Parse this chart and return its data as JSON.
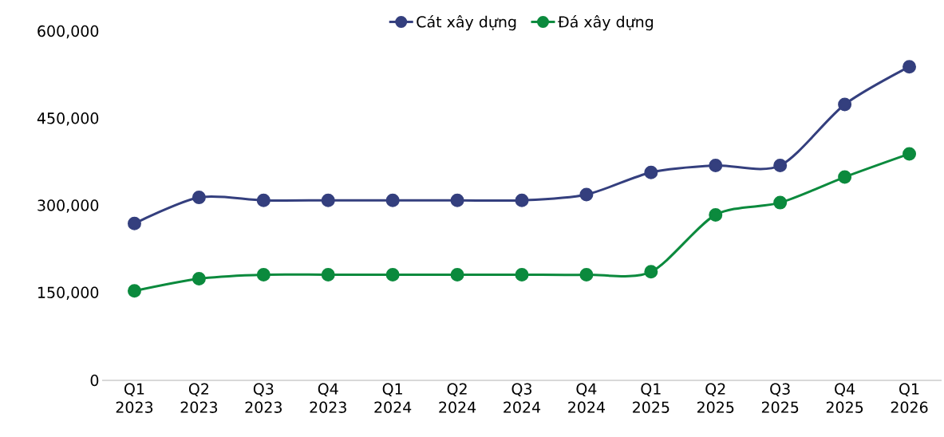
{
  "chart_data": {
    "type": "line",
    "categories": [
      "Q1 2023",
      "Q2 2023",
      "Q3 2023",
      "Q4 2023",
      "Q1 2024",
      "Q2 2024",
      "Q3 2024",
      "Q4 2024",
      "Q1 2025",
      "Q2 2025",
      "Q3 2025",
      "Q4 2025",
      "Q1 2026"
    ],
    "series": [
      {
        "name": "Cát xây dựng",
        "color": "#343f7e",
        "values": [
          270000,
          315000,
          310000,
          310000,
          310000,
          310000,
          310000,
          320000,
          358000,
          370000,
          370000,
          475000,
          540000
        ]
      },
      {
        "name": "Đá xây dựng",
        "color": "#0b8a3d",
        "values": [
          154000,
          175000,
          182000,
          182000,
          182000,
          182000,
          182000,
          182000,
          187000,
          285000,
          306000,
          350000,
          390000
        ]
      }
    ],
    "ylim": [
      0,
      600000
    ],
    "yticks": [
      {
        "value": 0,
        "label": "0"
      },
      {
        "value": 150000,
        "label": "150,000"
      },
      {
        "value": 300000,
        "label": "300,000"
      },
      {
        "value": 450000,
        "label": "450,000"
      },
      {
        "value": 600000,
        "label": "600,000"
      }
    ],
    "marker": "circle",
    "legend": "top",
    "grid": false
  }
}
